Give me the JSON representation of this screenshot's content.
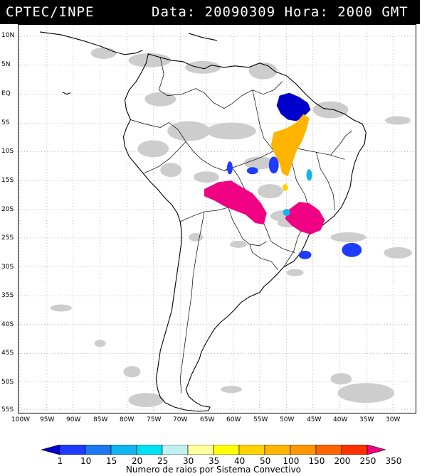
{
  "header": {
    "org": "CPTEC/INPE",
    "meta": "Data: 20090309 Hora: 2000 GMT"
  },
  "axes": {
    "lat_labels": [
      "10N",
      "5N",
      "EQ",
      "5S",
      "10S",
      "15S",
      "20S",
      "25S",
      "30S",
      "35S",
      "40S",
      "45S",
      "50S",
      "55S"
    ],
    "lon_labels": [
      "100W",
      "95W",
      "90W",
      "85W",
      "80W",
      "75W",
      "70W",
      "65W",
      "60W",
      "55W",
      "50W",
      "45W",
      "40W",
      "35W",
      "30W"
    ]
  },
  "legend": {
    "values": [
      "1",
      "10",
      "15",
      "20",
      "25",
      "30",
      "35",
      "40",
      "50",
      "100",
      "150",
      "200",
      "250",
      "350"
    ],
    "colors": [
      "#0000cc",
      "#1e3cff",
      "#1e78f0",
      "#10b4f0",
      "#00e0f0",
      "#c0f0f0",
      "#ffffa0",
      "#ffff00",
      "#ffd200",
      "#ffb400",
      "#ff9600",
      "#ff6400",
      "#ff3200",
      "#f00082"
    ],
    "title": "Numero de raios por Sistema Convectivo"
  }
}
